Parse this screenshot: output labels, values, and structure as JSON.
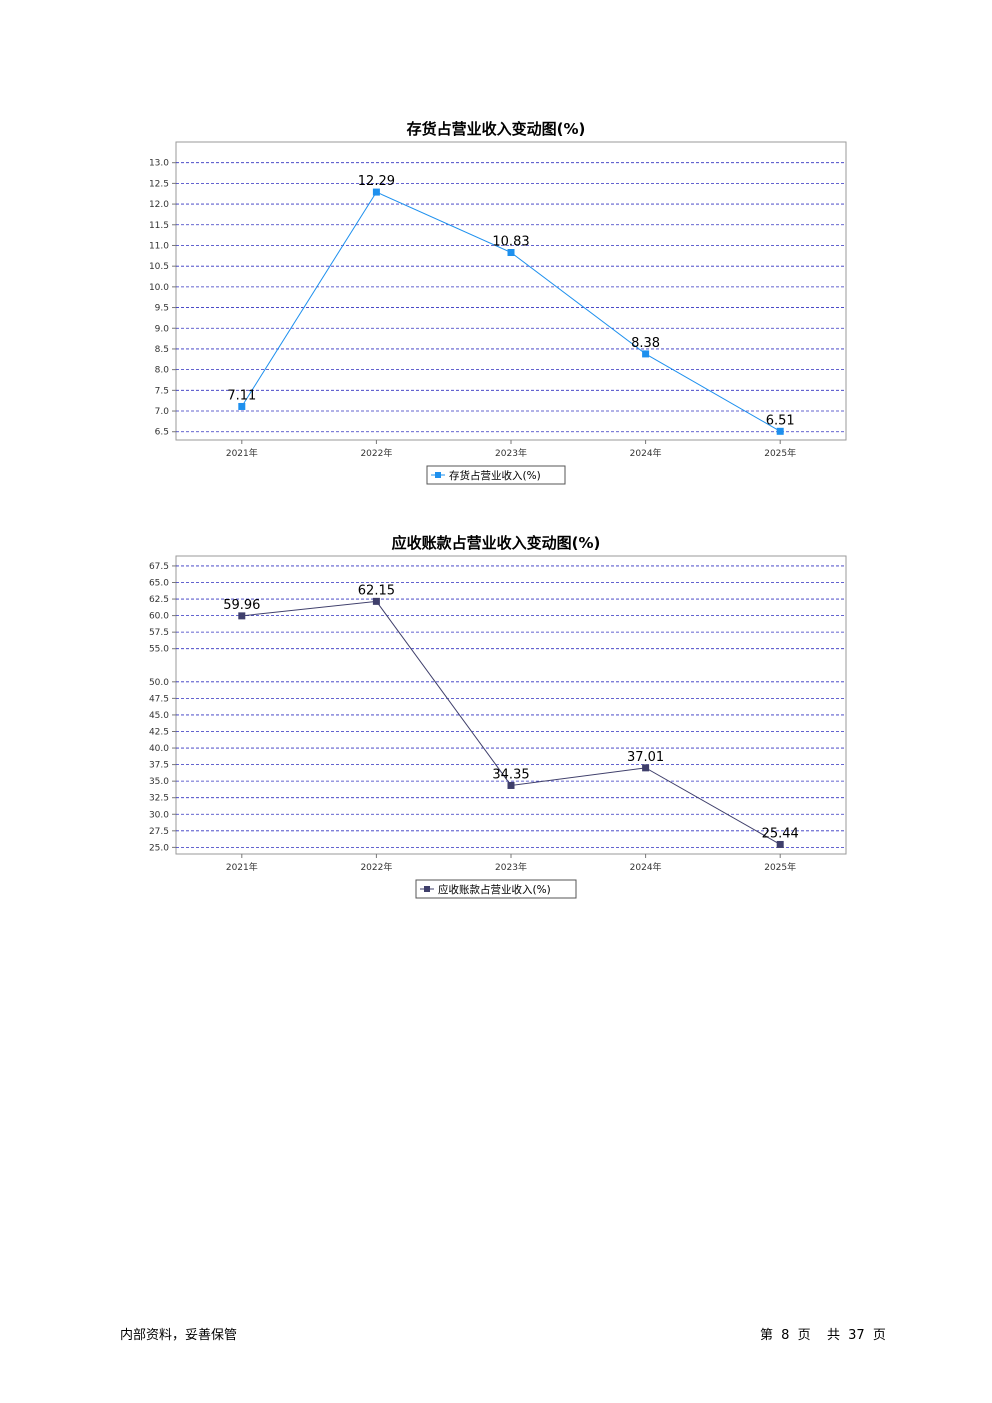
{
  "chart_data": [
    {
      "type": "line",
      "title": "存货占营业收入变动图(%)",
      "categories": [
        "2021年",
        "2022年",
        "2023年",
        "2024年",
        "2025年"
      ],
      "series": [
        {
          "name": "存货占营业收入(%)",
          "values": [
            7.11,
            12.29,
            10.83,
            8.38,
            6.51
          ],
          "color": "#1e90ee"
        }
      ],
      "value_labels": [
        "7.11",
        "12.29",
        "10.83",
        "8.38",
        "6.51"
      ],
      "y_ticks": [
        "6.5",
        "7.0",
        "7.5",
        "8.0",
        "8.5",
        "9.0",
        "9.5",
        "10.0",
        "10.5",
        "11.0",
        "11.5",
        "12.0",
        "12.5",
        "13.0"
      ],
      "ylim": [
        6.3,
        13.5
      ],
      "grid": true,
      "legend": "bottom-center"
    },
    {
      "type": "line",
      "title": "应收账款占营业收入变动图(%)",
      "categories": [
        "2021年",
        "2022年",
        "2023年",
        "2024年",
        "2025年"
      ],
      "series": [
        {
          "name": "应收账款占营业收入(%)",
          "values": [
            59.96,
            62.15,
            34.35,
            37.01,
            25.44
          ],
          "color": "#3f3f6b"
        }
      ],
      "value_labels": [
        "59.96",
        "62.15",
        "34.35",
        "37.01",
        "25.44"
      ],
      "y_ticks": [
        "25.0",
        "27.5",
        "30.0",
        "32.5",
        "35.0",
        "37.5",
        "40.0",
        "42.5",
        "45.0",
        "47.5",
        "50.0",
        "55.0",
        "57.5",
        "60.0",
        "62.5",
        "65.0",
        "67.5"
      ],
      "ylim": [
        24.0,
        69.0
      ],
      "grid": true,
      "legend": "bottom-center"
    }
  ],
  "footer": {
    "left": "内部资料，妥善保管",
    "page_prefix": "第",
    "page_number": "8",
    "page_unit": "页",
    "total_prefix": "共",
    "total_pages": "37",
    "total_unit": "页"
  }
}
